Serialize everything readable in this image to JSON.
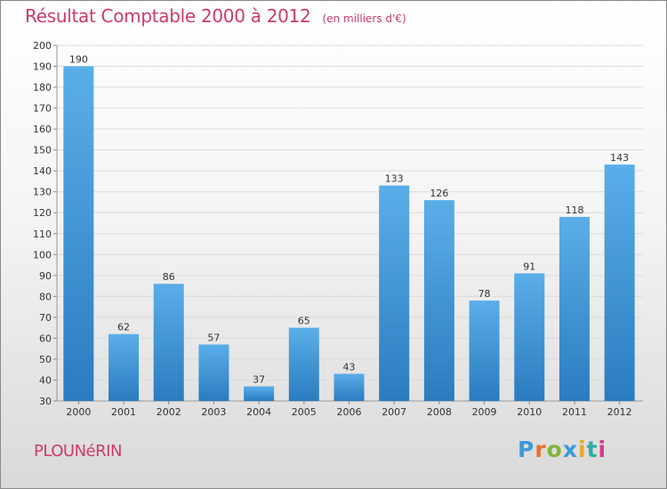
{
  "chart_data": {
    "type": "bar",
    "title": "Résultat Comptable 2000 à 2012",
    "subtitle": "(en milliers d'€)",
    "categories": [
      "2000",
      "2001",
      "2002",
      "2003",
      "2004",
      "2005",
      "2006",
      "2007",
      "2008",
      "2009",
      "2010",
      "2011",
      "2012"
    ],
    "values": [
      190,
      62,
      86,
      57,
      37,
      65,
      43,
      133,
      126,
      78,
      91,
      118,
      143
    ],
    "ylim": [
      30,
      200
    ],
    "yticks": [
      30,
      40,
      50,
      60,
      70,
      80,
      90,
      100,
      110,
      120,
      130,
      140,
      150,
      160,
      170,
      180,
      190,
      200
    ],
    "grid": true,
    "xlabel": "",
    "ylabel": "",
    "bar_color_top": "#5aaee8",
    "bar_color_bottom": "#2a7cbf"
  },
  "footer": {
    "commune": "PLOUNéRIN",
    "brand_letters": [
      "P",
      "r",
      "o",
      "x",
      "i",
      "t",
      "i"
    ],
    "brand_colors": [
      "#3d9ad8",
      "#e8732a",
      "#7fb53d",
      "#3d9ad8",
      "#e8a82a",
      "#2ab0a0",
      "#d23b8a"
    ]
  }
}
